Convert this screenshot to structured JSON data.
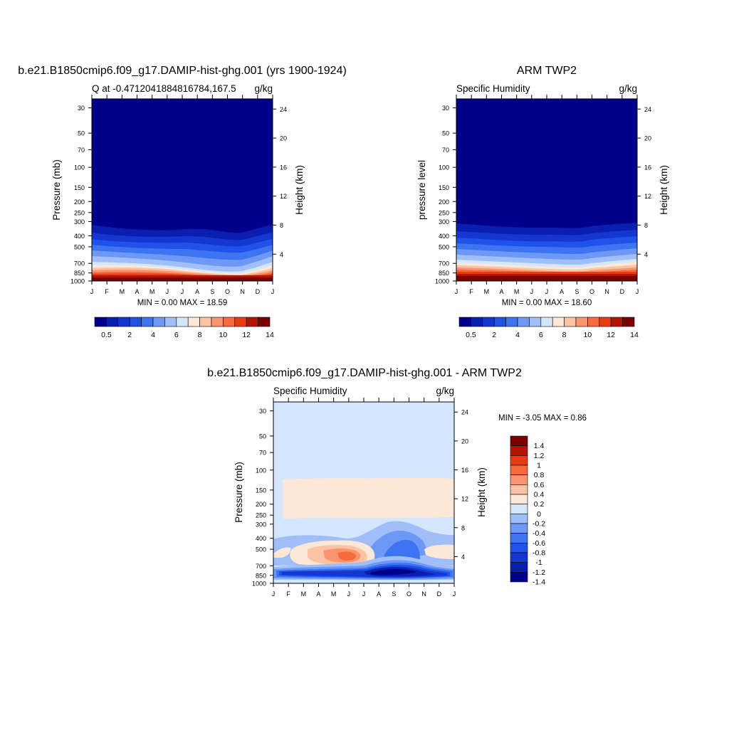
{
  "colormap": [
    "#00008a",
    "#0a1fb0",
    "#1437d2",
    "#1f52e8",
    "#3c74f2",
    "#6d98f5",
    "#a0bff8",
    "#d3e6fb",
    "#fde7d6",
    "#fbc2a4",
    "#f89570",
    "#f66a3b",
    "#e93b14",
    "#b41406",
    "#7a0000"
  ],
  "panels": [
    {
      "title": "b.e21.B1850cmip6.f09_g17.DAMIP-hist-ghg.001 (yrs 1900-1924)",
      "left_subtitle": "Q at -0.4712041884816784,167.5",
      "right_subtitle": "g/kg",
      "ylabel_left": "Pressure (mb)",
      "ylabel_right": "Height (km)",
      "stats": "MIN =   0.00 MAX =  18.59",
      "colorbar_labels": [
        "0.5",
        "2",
        "4",
        "6",
        "8",
        "10",
        "12",
        "14"
      ]
    },
    {
      "title": "ARM TWP2",
      "left_subtitle": "Specific Humidity",
      "right_subtitle": "g/kg",
      "ylabel_left": "pressure level",
      "ylabel_right": "Height (km)",
      "stats": "MIN =   0.00 MAX =  18.60",
      "colorbar_labels": [
        "0.5",
        "2",
        "4",
        "6",
        "8",
        "10",
        "12",
        "14"
      ]
    },
    {
      "title": "b.e21.B1850cmip6.f09_g17.DAMIP-hist-ghg.001 - ARM TWP2",
      "left_subtitle": "Specific Humidity",
      "right_subtitle": "g/kg",
      "ylabel_left": "Pressure (mb)",
      "ylabel_right": "Height (km)",
      "stats": "MIN =  -3.05 MAX =    0.86",
      "colorbar_labels": [
        "1.4",
        "1.2",
        "1",
        "0.8",
        "0.6",
        "0.4",
        "0.2",
        "0",
        "-0.2",
        "-0.4",
        "-0.6",
        "-0.8",
        "-1",
        "-1.2",
        "-1.4"
      ]
    }
  ],
  "chart_data": [
    {
      "type": "heatmap",
      "title": "b.e21.B1850cmip6.f09_g17.DAMIP-hist-ghg.001 (yrs 1900-1924)",
      "variable": "Q at -0.4712041884816784,167.5",
      "units": "g/kg",
      "x_ticks": [
        "J",
        "F",
        "M",
        "A",
        "M",
        "J",
        "J",
        "A",
        "S",
        "O",
        "N",
        "D",
        "J"
      ],
      "y_ticks": [
        "30",
        "50",
        "70",
        "100",
        "150",
        "200",
        "250",
        "300",
        "400",
        "500",
        "700",
        "850",
        "1000"
      ],
      "y_right_ticks": [
        "24",
        "20",
        "16",
        "12",
        "8",
        "4"
      ],
      "ylabel": "Pressure (mb)",
      "ylabel_right": "Height (km)",
      "y_scale": "log",
      "ylim": [
        1000,
        25
      ],
      "colorbar": [
        "0.5",
        "2",
        "4",
        "6",
        "8",
        "10",
        "12",
        "14"
      ],
      "min": 0.0,
      "max": 18.59
    },
    {
      "type": "heatmap",
      "title": "ARM TWP2",
      "variable": "Specific Humidity",
      "units": "g/kg",
      "x_ticks": [
        "J",
        "F",
        "M",
        "A",
        "M",
        "J",
        "J",
        "A",
        "S",
        "O",
        "N",
        "D",
        "J"
      ],
      "y_ticks": [
        "30",
        "50",
        "70",
        "100",
        "150",
        "200",
        "250",
        "300",
        "400",
        "500",
        "700",
        "850",
        "1000"
      ],
      "y_right_ticks": [
        "24",
        "20",
        "16",
        "12",
        "8",
        "4"
      ],
      "ylabel": "pressure level",
      "ylabel_right": "Height (km)",
      "y_scale": "log",
      "ylim": [
        1000,
        25
      ],
      "colorbar": [
        "0.5",
        "2",
        "4",
        "6",
        "8",
        "10",
        "12",
        "14"
      ],
      "min": 0.0,
      "max": 18.6
    },
    {
      "type": "heatmap",
      "title": "b.e21.B1850cmip6.f09_g17.DAMIP-hist-ghg.001 - ARM TWP2",
      "variable": "Specific Humidity",
      "units": "g/kg",
      "x_ticks": [
        "J",
        "F",
        "M",
        "A",
        "M",
        "J",
        "J",
        "A",
        "S",
        "O",
        "N",
        "D",
        "J"
      ],
      "y_ticks": [
        "30",
        "50",
        "70",
        "100",
        "150",
        "200",
        "250",
        "300",
        "400",
        "500",
        "700",
        "850",
        "1000"
      ],
      "y_right_ticks": [
        "24",
        "20",
        "16",
        "12",
        "8",
        "4"
      ],
      "ylabel": "Pressure (mb)",
      "ylabel_right": "Height (km)",
      "y_scale": "log",
      "ylim": [
        1000,
        25
      ],
      "colorbar": [
        "1.4",
        "1.2",
        "1",
        "0.8",
        "0.6",
        "0.4",
        "0.2",
        "0",
        "-0.2",
        "-0.4",
        "-0.6",
        "-0.8",
        "-1",
        "-1.2",
        "-1.4"
      ],
      "min": -3.05,
      "max": 0.86
    }
  ]
}
